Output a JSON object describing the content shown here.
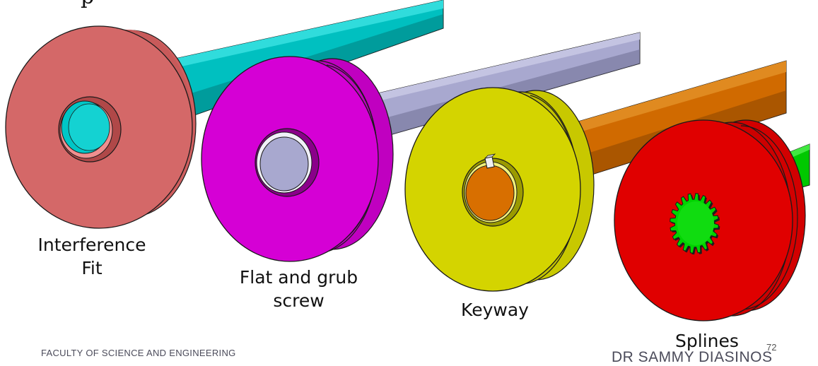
{
  "diagram": {
    "stray_glyph": "p",
    "labels": {
      "interference": [
        "Interference",
        "Fit"
      ],
      "flat_grub": [
        "Flat and grub",
        "screw"
      ],
      "keyway": "Keyway",
      "splines": "Splines"
    },
    "footer": {
      "left": "FACULTY OF SCIENCE AND ENGINEERING",
      "right": "DR SAMMY DIASINOS",
      "page": "72"
    },
    "colors": {
      "interference_hub": "#d46868",
      "interference_shaft": "#00c0c0",
      "flat_hub": "#d500d5",
      "flat_shaft": "#a8a8cf",
      "keyway_hub": "#d4d400",
      "keyway_shaft": "#d86f00",
      "splines_hub": "#e00000",
      "splines_shaft": "#00d400"
    }
  }
}
